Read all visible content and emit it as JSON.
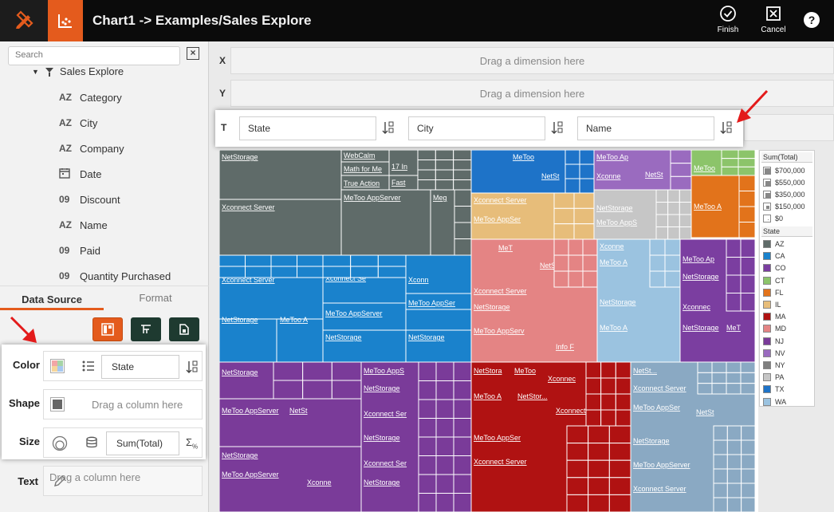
{
  "header": {
    "title": "Chart1 -> Examples/Sales Explore",
    "finish_label": "Finish",
    "cancel_label": "Cancel",
    "help_label": "?"
  },
  "sidebar": {
    "search_placeholder": "Search",
    "root_label": "Sales Explore",
    "fields": [
      {
        "type": "AZ",
        "label": "Category"
      },
      {
        "type": "AZ",
        "label": "City"
      },
      {
        "type": "AZ",
        "label": "Company"
      },
      {
        "type": "date",
        "label": "Date"
      },
      {
        "type": "09",
        "label": "Discount"
      },
      {
        "type": "AZ",
        "label": "Name"
      },
      {
        "type": "09",
        "label": "Paid"
      },
      {
        "type": "09",
        "label": "Quantity Purchased"
      }
    ],
    "tabs": {
      "data_source": "Data Source",
      "format": "Format"
    }
  },
  "bindings": {
    "color_label": "Color",
    "color_field": "State",
    "shape_label": "Shape",
    "shape_placeholder": "Drag a column here",
    "size_label": "Size",
    "size_field": "Sum(Total)",
    "text_label": "Text",
    "text_placeholder": "Drag a column here"
  },
  "axes": {
    "x_label": "X",
    "x_placeholder": "Drag a dimension here",
    "y_label": "Y",
    "y_placeholder": "Drag a dimension here",
    "t_label": "T",
    "t_fields": [
      "State",
      "City",
      "Name"
    ]
  },
  "legend": {
    "size_title": "Sum(Total)",
    "size_items": [
      "$700,000",
      "$550,000",
      "$350,000",
      "$150,000",
      "$0"
    ],
    "state_title": "State",
    "state_items": [
      {
        "label": "AZ",
        "color": "#5f6b69"
      },
      {
        "label": "CA",
        "color": "#1a82cc"
      },
      {
        "label": "CO",
        "color": "#7b3ea0"
      },
      {
        "label": "CT",
        "color": "#8cc46a"
      },
      {
        "label": "FL",
        "color": "#e2731b"
      },
      {
        "label": "IL",
        "color": "#e7bd7a"
      },
      {
        "label": "MA",
        "color": "#b01212"
      },
      {
        "label": "MD",
        "color": "#e48484"
      },
      {
        "label": "NJ",
        "color": "#7a3b99"
      },
      {
        "label": "NV",
        "color": "#9a6bbf"
      },
      {
        "label": "NY",
        "color": "#7f7f7f"
      },
      {
        "label": "PA",
        "color": "#c6c6c6"
      },
      {
        "label": "TX",
        "color": "#1e73c8"
      },
      {
        "label": "WA",
        "color": "#9bc3e0"
      }
    ]
  },
  "treemap": {
    "labels": {
      "netstorage": "NetStorage",
      "webcalm": "WebCalm",
      "math": "Math for Me",
      "n17": "17 In",
      "true_action": "True Action",
      "fast": "Fast",
      "xconnect": "Xconnect Server",
      "metoo_app": "MeToo AppServer",
      "meg": "Meg",
      "xconnect_short": "Xconne",
      "metoo_short": "MeToo",
      "netst": "NetSt",
      "metoo_ap": "MeToo Ap",
      "info_f": "Info F",
      "metoo_a": "MeToo A",
      "metoo_app_s": "MeToo AppS",
      "xconnect_se": "Xconnect Se",
      "xconn": "Xconn",
      "metoo_appser": "MeToo AppSer",
      "metoo_appserv": "MeToo AppServ",
      "xconnect_ser": "Xconnect Ser",
      "netstor": "NetStor",
      "xconnect_s": "Xconnect S",
      "xconnec": "Xconnec",
      "netstora": "NetStora",
      "xconnect_dots": "Xconnect...",
      "met": "MeT",
      "netstor_dots": "NetStor...",
      "netst_dots": "NetSt..."
    }
  }
}
